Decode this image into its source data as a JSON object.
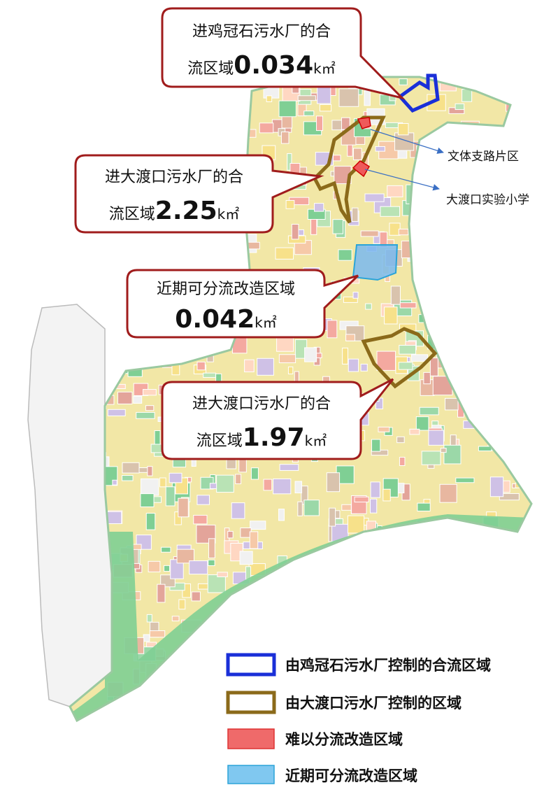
{
  "callouts": [
    {
      "line1": "进鸡冠石污水厂的合",
      "prefix": "流区域",
      "value": "0.034",
      "unit": "k㎡"
    },
    {
      "line1": "进大渡口污水厂的合",
      "prefix": "流区域",
      "value": "2.25",
      "unit": "k㎡"
    },
    {
      "line1": "近期可分流改造区域",
      "value": "0.042",
      "unit": "k㎡"
    },
    {
      "line1": "进大渡口污水厂的合",
      "prefix": "流区域",
      "value": "1.97",
      "unit": "k㎡"
    }
  ],
  "place_labels": [
    "文体支路片区",
    "大渡口实验小学"
  ],
  "legend": [
    "由鸡冠石污水厂控制的合流区域",
    "由大渡口污水厂控制的区域",
    "难以分流改造区域",
    "近期可分流改造区域"
  ]
}
